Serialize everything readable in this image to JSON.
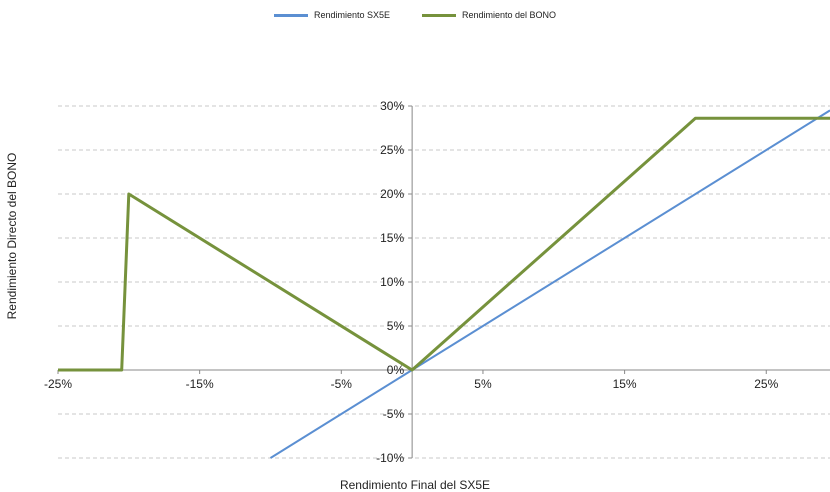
{
  "chart_data": {
    "type": "line",
    "title": "",
    "xlabel": "Rendimiento Final del SX5E",
    "ylabel": "Rendimiento Directo del BONO",
    "xlim": [
      -25,
      29.5
    ],
    "ylim": [
      -10,
      30
    ],
    "x_ticks": [
      "-25%",
      "-15%",
      "-5%",
      "5%",
      "15%",
      "25%"
    ],
    "x_tick_values": [
      -25,
      -15,
      -5,
      5,
      15,
      25
    ],
    "y_ticks": [
      "30%",
      "25%",
      "20%",
      "15%",
      "10%",
      "5%",
      "0%",
      "-5%",
      "-10%"
    ],
    "y_tick_values": [
      30,
      25,
      20,
      15,
      10,
      5,
      0,
      -5,
      -10
    ],
    "grid": "horizontal dashed",
    "legend_position": "top-center",
    "series": [
      {
        "name": "Rendimiento SX5E",
        "color": "#5b8fd2",
        "points": [
          [
            -10,
            -10
          ],
          [
            0,
            0
          ],
          [
            29.5,
            29.5
          ]
        ]
      },
      {
        "name": "Rendimiento del BONO",
        "color": "#76923c",
        "points": [
          [
            -25,
            0
          ],
          [
            -20.5,
            0
          ],
          [
            -20,
            20
          ],
          [
            0,
            0
          ],
          [
            20,
            28.6
          ],
          [
            29.5,
            28.6
          ]
        ]
      }
    ]
  }
}
